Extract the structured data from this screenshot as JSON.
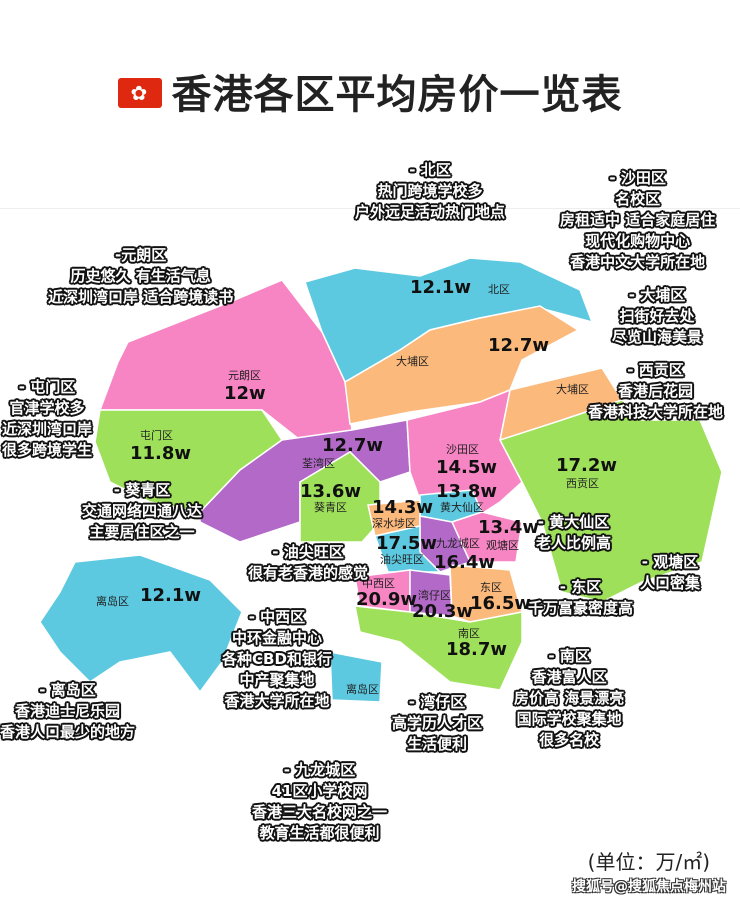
{
  "title": "香港各区平均房价一览表",
  "flag_icon": "hong-kong-flag",
  "colors": {
    "blue": "#5cc9e0",
    "pink": "#f784c3",
    "orange": "#fbb97c",
    "green": "#9ee05a",
    "purple": "#b269c8"
  },
  "districts": [
    {
      "id": "north",
      "name": "北区",
      "price": "12.1w",
      "color": "blue"
    },
    {
      "id": "yuenlong",
      "name": "元朗区",
      "price": "12w",
      "color": "pink"
    },
    {
      "id": "taipo",
      "name": "大埔区",
      "price": "12.7w",
      "color": "orange"
    },
    {
      "id": "taipo2",
      "name": "大埔区",
      "price": "",
      "color": "orange"
    },
    {
      "id": "tuenmun",
      "name": "屯门区",
      "price": "11.8w",
      "color": "green"
    },
    {
      "id": "tsuenwan",
      "name": "荃湾区",
      "price": "12.7w",
      "color": "purple"
    },
    {
      "id": "shatin",
      "name": "沙田区",
      "price": "14.5w",
      "color": "pink"
    },
    {
      "id": "saikung",
      "name": "西贡区",
      "price": "17.2w",
      "color": "green"
    },
    {
      "id": "kwaitsing",
      "name": "葵青区",
      "price": "13.6w",
      "color": "green"
    },
    {
      "id": "wongtaisin",
      "name": "黄大仙区",
      "price": "13.8w",
      "color": "blue"
    },
    {
      "id": "shamshuipo",
      "name": "深水埗区",
      "price": "14.3w",
      "color": "orange"
    },
    {
      "id": "kwuntong",
      "name": "观塘区",
      "price": "13.4w",
      "color": "pink"
    },
    {
      "id": "kowlooncity",
      "name": "九龙城区",
      "price": "16.4w",
      "color": "purple"
    },
    {
      "id": "yautsimmong",
      "name": "油尖旺区",
      "price": "17.5w",
      "color": "blue"
    },
    {
      "id": "central",
      "name": "中西区",
      "price": "20.9w",
      "color": "pink"
    },
    {
      "id": "wanchai",
      "name": "湾仔区",
      "price": "20.3w",
      "color": "purple"
    },
    {
      "id": "eastern",
      "name": "东区",
      "price": "16.5w",
      "color": "orange"
    },
    {
      "id": "southern",
      "name": "南区",
      "price": "18.7w",
      "color": "green"
    },
    {
      "id": "islands",
      "name": "离岛区",
      "price": "12.1w",
      "color": "blue"
    },
    {
      "id": "islands2",
      "name": "离岛区",
      "price": "",
      "color": "blue"
    }
  ],
  "notes": [
    {
      "id": "north",
      "lines": [
        "- 北区",
        "热门跨境学校多",
        "户外远足活动热门地点"
      ]
    },
    {
      "id": "shatin",
      "lines": [
        "- 沙田区",
        "名校区",
        "房租适中 适合家庭居住",
        "现代化购物中心",
        "香港中文大学所在地"
      ]
    },
    {
      "id": "yuenlong",
      "lines": [
        "-元朗区",
        "历史悠久 有生活气息",
        "近深圳湾口岸 适合跨境读书"
      ]
    },
    {
      "id": "taipo",
      "lines": [
        "- 大埔区",
        "扫街好去处",
        "尽览山海美景"
      ]
    },
    {
      "id": "tuenmun",
      "lines": [
        "- 屯门区",
        "官津学校多",
        "近深圳湾口岸",
        "很多跨境学生"
      ]
    },
    {
      "id": "saikung",
      "lines": [
        "- 西贡区",
        "香港后花园",
        "香港科技大学所在地"
      ]
    },
    {
      "id": "kwaitsing",
      "lines": [
        "- 葵青区",
        "交通网络四通八达",
        "主要居住区之一"
      ]
    },
    {
      "id": "wongtaisin",
      "lines": [
        "- 黄大仙区",
        "老人比例高"
      ]
    },
    {
      "id": "yautsimmong",
      "lines": [
        "- 油尖旺区",
        "很有老香港的感觉"
      ]
    },
    {
      "id": "kwuntong",
      "lines": [
        "- 观塘区",
        "人口密集"
      ]
    },
    {
      "id": "eastern",
      "lines": [
        "- 东区",
        "千万富豪密度高"
      ]
    },
    {
      "id": "central",
      "lines": [
        "- 中西区",
        "中环金融中心",
        "各种CBD和银行",
        "中产聚集地",
        "香港大学所在地"
      ]
    },
    {
      "id": "southern",
      "lines": [
        "- 南区",
        "香港富人区",
        "房价高 海景漂亮",
        "国际学校聚集地",
        "很多名校"
      ]
    },
    {
      "id": "islands",
      "lines": [
        "- 离岛区",
        "香港迪士尼乐园",
        "香港人口最少的地方"
      ]
    },
    {
      "id": "wanchai",
      "lines": [
        "- 湾仔区",
        "高学历人才区",
        "生活便利"
      ]
    },
    {
      "id": "kowlooncity",
      "lines": [
        "- 九龙城区",
        "41区小学校网",
        "香港三大名校网之一",
        "教育生活都很便利"
      ]
    }
  ],
  "unit": "(单位：万/㎡)",
  "watermark": "搜狐号@搜狐焦点梅州站"
}
